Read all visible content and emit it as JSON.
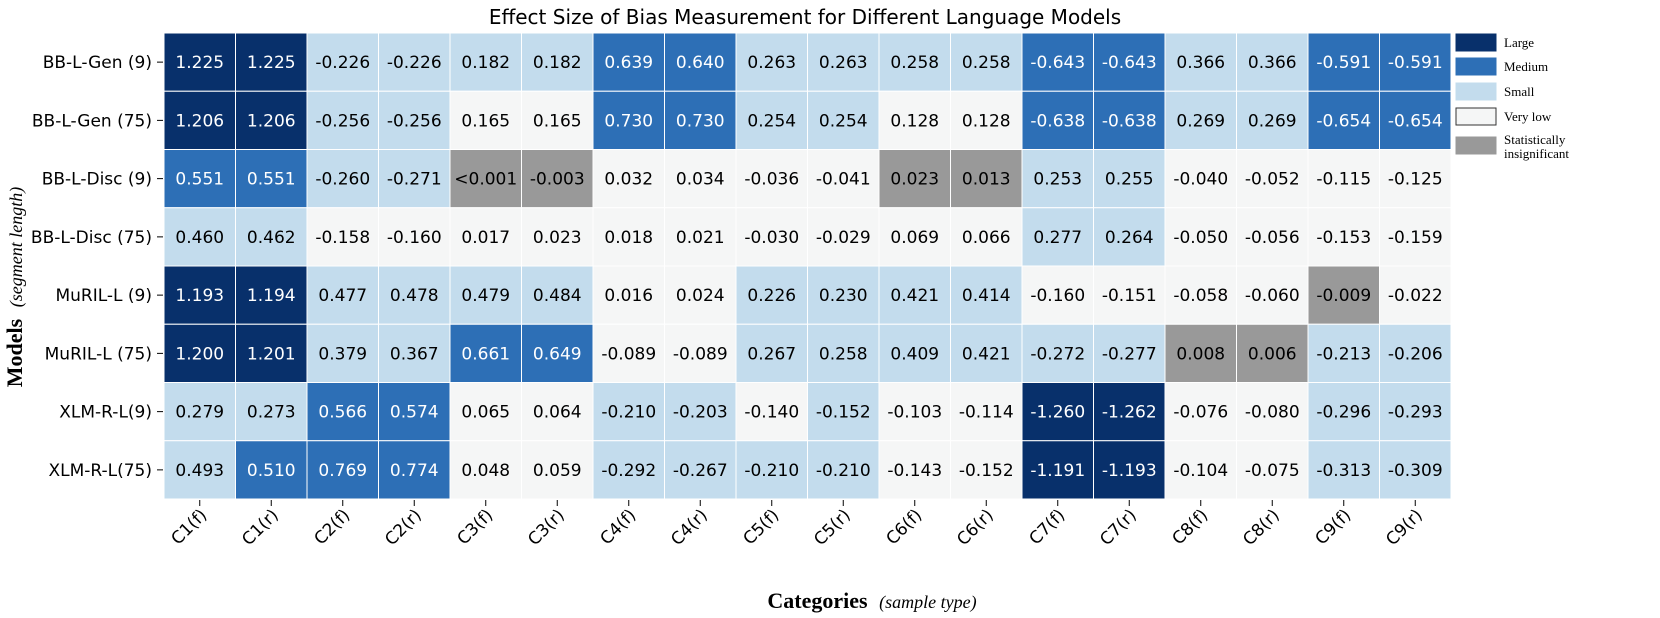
{
  "chart_data": {
    "type": "heatmap",
    "title": "Effect Size of Bias Measurement for Different Language Models",
    "xlabel": "Categories",
    "xlabel_note": "(sample type)",
    "ylabel": "Models",
    "ylabel_note": "(segment length)",
    "categories": [
      "C1(f)",
      "C1(r)",
      "C2(f)",
      "C2(r)",
      "C3(f)",
      "C3(r)",
      "C4(f)",
      "C4(r)",
      "C5(f)",
      "C5(r)",
      "C6(f)",
      "C6(r)",
      "C7(f)",
      "C7(r)",
      "C8(f)",
      "C8(r)",
      "C9(f)",
      "C9(r)"
    ],
    "rows": [
      "BB-L-Gen (9)",
      "BB-L-Gen (75)",
      "BB-L-Disc (9)",
      "BB-L-Disc (75)",
      "MuRIL-L (9)",
      "MuRIL-L (75)",
      "XLM-R-L(9)",
      "XLM-R-L(75)"
    ],
    "cells": [
      [
        "1.225",
        "1.225",
        "-0.226",
        "-0.226",
        "0.182",
        "0.182",
        "0.639",
        "0.640",
        "0.263",
        "0.263",
        "0.258",
        "0.258",
        "-0.643",
        "-0.643",
        "0.366",
        "0.366",
        "-0.591",
        "-0.591"
      ],
      [
        "1.206",
        "1.206",
        "-0.256",
        "-0.256",
        "0.165",
        "0.165",
        "0.730",
        "0.730",
        "0.254",
        "0.254",
        "0.128",
        "0.128",
        "-0.638",
        "-0.638",
        "0.269",
        "0.269",
        "-0.654",
        "-0.654"
      ],
      [
        "0.551",
        "0.551",
        "-0.260",
        "-0.271",
        "<0.001",
        "-0.003",
        "0.032",
        "0.034",
        "-0.036",
        "-0.041",
        "0.023",
        "0.013",
        "0.253",
        "0.255",
        "-0.040",
        "-0.052",
        "-0.115",
        "-0.125"
      ],
      [
        "0.460",
        "0.462",
        "-0.158",
        "-0.160",
        "0.017",
        "0.023",
        "0.018",
        "0.021",
        "-0.030",
        "-0.029",
        "0.069",
        "0.066",
        "0.277",
        "0.264",
        "-0.050",
        "-0.056",
        "-0.153",
        "-0.159"
      ],
      [
        "1.193",
        "1.194",
        "0.477",
        "0.478",
        "0.479",
        "0.484",
        "0.016",
        "0.024",
        "0.226",
        "0.230",
        "0.421",
        "0.414",
        "-0.160",
        "-0.151",
        "-0.058",
        "-0.060",
        "-0.009",
        "-0.022"
      ],
      [
        "1.200",
        "1.201",
        "0.379",
        "0.367",
        "0.661",
        "0.649",
        "-0.089",
        "-0.089",
        "0.267",
        "0.258",
        "0.409",
        "0.421",
        "-0.272",
        "-0.277",
        "0.008",
        "0.006",
        "-0.213",
        "-0.206"
      ],
      [
        "0.279",
        "0.273",
        "0.566",
        "0.574",
        "0.065",
        "0.064",
        "-0.210",
        "-0.203",
        "-0.140",
        "-0.152",
        "-0.103",
        "-0.114",
        "-1.260",
        "-1.262",
        "-0.076",
        "-0.080",
        "-0.296",
        "-0.293"
      ],
      [
        "0.493",
        "0.510",
        "0.769",
        "0.774",
        "0.048",
        "0.059",
        "-0.292",
        "-0.267",
        "-0.210",
        "-0.210",
        "-0.143",
        "-0.152",
        "-1.191",
        "-1.193",
        "-0.104",
        "-0.075",
        "-0.313",
        "-0.309"
      ]
    ],
    "levels": [
      [
        "L",
        "L",
        "S",
        "S",
        "S",
        "S",
        "M",
        "M",
        "S",
        "S",
        "S",
        "S",
        "M",
        "M",
        "S",
        "S",
        "M",
        "M"
      ],
      [
        "L",
        "L",
        "S",
        "S",
        "V",
        "V",
        "M",
        "M",
        "S",
        "S",
        "V",
        "V",
        "M",
        "M",
        "S",
        "S",
        "M",
        "M"
      ],
      [
        "M",
        "M",
        "S",
        "S",
        "I",
        "I",
        "V",
        "V",
        "V",
        "V",
        "I",
        "I",
        "S",
        "S",
        "V",
        "V",
        "V",
        "V"
      ],
      [
        "S",
        "S",
        "V",
        "V",
        "V",
        "V",
        "V",
        "V",
        "V",
        "V",
        "V",
        "V",
        "S",
        "S",
        "V",
        "V",
        "V",
        "V"
      ],
      [
        "L",
        "L",
        "S",
        "S",
        "S",
        "S",
        "V",
        "V",
        "S",
        "S",
        "S",
        "S",
        "V",
        "V",
        "V",
        "V",
        "I",
        "V"
      ],
      [
        "L",
        "L",
        "S",
        "S",
        "M",
        "M",
        "V",
        "V",
        "S",
        "S",
        "S",
        "S",
        "S",
        "S",
        "I",
        "I",
        "S",
        "S"
      ],
      [
        "S",
        "S",
        "M",
        "M",
        "V",
        "V",
        "S",
        "S",
        "V",
        "S",
        "V",
        "V",
        "L",
        "L",
        "V",
        "V",
        "S",
        "S"
      ],
      [
        "S",
        "M",
        "M",
        "M",
        "V",
        "V",
        "S",
        "S",
        "S",
        "S",
        "V",
        "V",
        "L",
        "L",
        "V",
        "V",
        "S",
        "S"
      ]
    ],
    "legend": [
      {
        "key": "L",
        "label": "Large",
        "color": "#08306b"
      },
      {
        "key": "M",
        "label": "Medium",
        "color": "#2d6fb6"
      },
      {
        "key": "S",
        "label": "Small",
        "color": "#c3dced"
      },
      {
        "key": "V",
        "label": "Very low",
        "color": "#f5f6f6"
      },
      {
        "key": "I",
        "label": "Statistically insignificant",
        "color": "#999999"
      }
    ],
    "legend_position": "right",
    "grid": true
  }
}
